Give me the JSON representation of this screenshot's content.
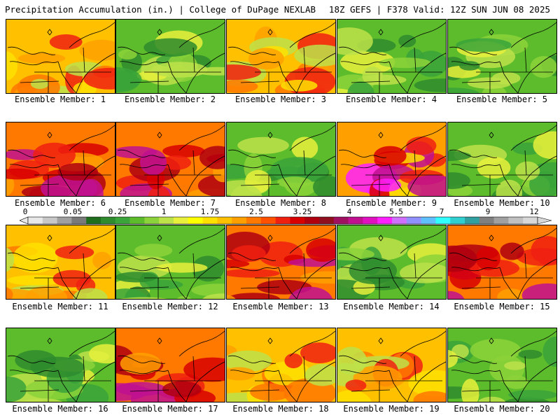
{
  "header": {
    "left": "Precipitation Accumulation (in.) | College of DuPage NEXLAB",
    "right": "18Z GEFS | F378 Valid: 12Z SUN JUN 08 2025"
  },
  "colorbar": {
    "labels": [
      "0",
      "0.05",
      "0.25",
      "1",
      "1.75",
      "2.5",
      "3.25",
      "4",
      "5.5",
      "7",
      "9",
      "12"
    ],
    "colors": [
      "#e8e8e8",
      "#c8c8c8",
      "#a0a0a0",
      "#7a7a7a",
      "#1e6e1e",
      "#2e8b2e",
      "#3aa33a",
      "#5cbc2c",
      "#8cd23a",
      "#bde24a",
      "#e8f03c",
      "#ffff00",
      "#ffe000",
      "#ffc000",
      "#ffa000",
      "#ff7800",
      "#ff5000",
      "#f02010",
      "#d80000",
      "#b00010",
      "#901020",
      "#a01060",
      "#c01090",
      "#e010c0",
      "#ff20ff",
      "#d070ff",
      "#9090ff",
      "#60c0ff",
      "#30ffff",
      "#30d0d0",
      "#30a0a0",
      "#808080",
      "#a0a0a0",
      "#c0c0c0",
      "#d8d8d8"
    ]
  },
  "members": [
    {
      "label": "Ensemble Member: 1",
      "theme": "orange"
    },
    {
      "label": "Ensemble Member: 2",
      "theme": "green"
    },
    {
      "label": "Ensemble Member: 3",
      "theme": "orange"
    },
    {
      "label": "Ensemble Member: 4",
      "theme": "green"
    },
    {
      "label": "Ensemble Member: 5",
      "theme": "green"
    },
    {
      "label": "Ensemble Member: 6",
      "theme": "red"
    },
    {
      "label": "Ensemble Member: 7",
      "theme": "red"
    },
    {
      "label": "Ensemble Member: 8",
      "theme": "green"
    },
    {
      "label": "Ensemble Member: 9",
      "theme": "magenta"
    },
    {
      "label": "Ensemble Member: 10",
      "theme": "green"
    },
    {
      "label": "Ensemble Member: 11",
      "theme": "orange"
    },
    {
      "label": "Ensemble Member: 12",
      "theme": "green"
    },
    {
      "label": "Ensemble Member: 13",
      "theme": "red"
    },
    {
      "label": "Ensemble Member: 14",
      "theme": "green"
    },
    {
      "label": "Ensemble Member: 15",
      "theme": "red"
    },
    {
      "label": "Ensemble Member: 16",
      "theme": "green"
    },
    {
      "label": "Ensemble Member: 17",
      "theme": "red"
    },
    {
      "label": "Ensemble Member: 18",
      "theme": "orange"
    },
    {
      "label": "Ensemble Member: 19",
      "theme": "orange"
    },
    {
      "label": "Ensemble Member: 20",
      "theme": "green"
    }
  ],
  "themes": {
    "green": {
      "base": "#5cbc2c",
      "blobs": [
        "#3aa33a",
        "#8cd23a",
        "#bde24a",
        "#2e8b2e",
        "#e8f03c"
      ]
    },
    "orange": {
      "base": "#ffc000",
      "blobs": [
        "#ff7800",
        "#ffa000",
        "#bde24a",
        "#f02010",
        "#ffe000"
      ]
    },
    "red": {
      "base": "#ff7800",
      "blobs": [
        "#f02010",
        "#d80000",
        "#b00010",
        "#c01090",
        "#ffa000"
      ]
    },
    "magenta": {
      "base": "#ffa000",
      "blobs": [
        "#f02010",
        "#c01090",
        "#ff20ff",
        "#d80000",
        "#ffe000"
      ]
    }
  }
}
